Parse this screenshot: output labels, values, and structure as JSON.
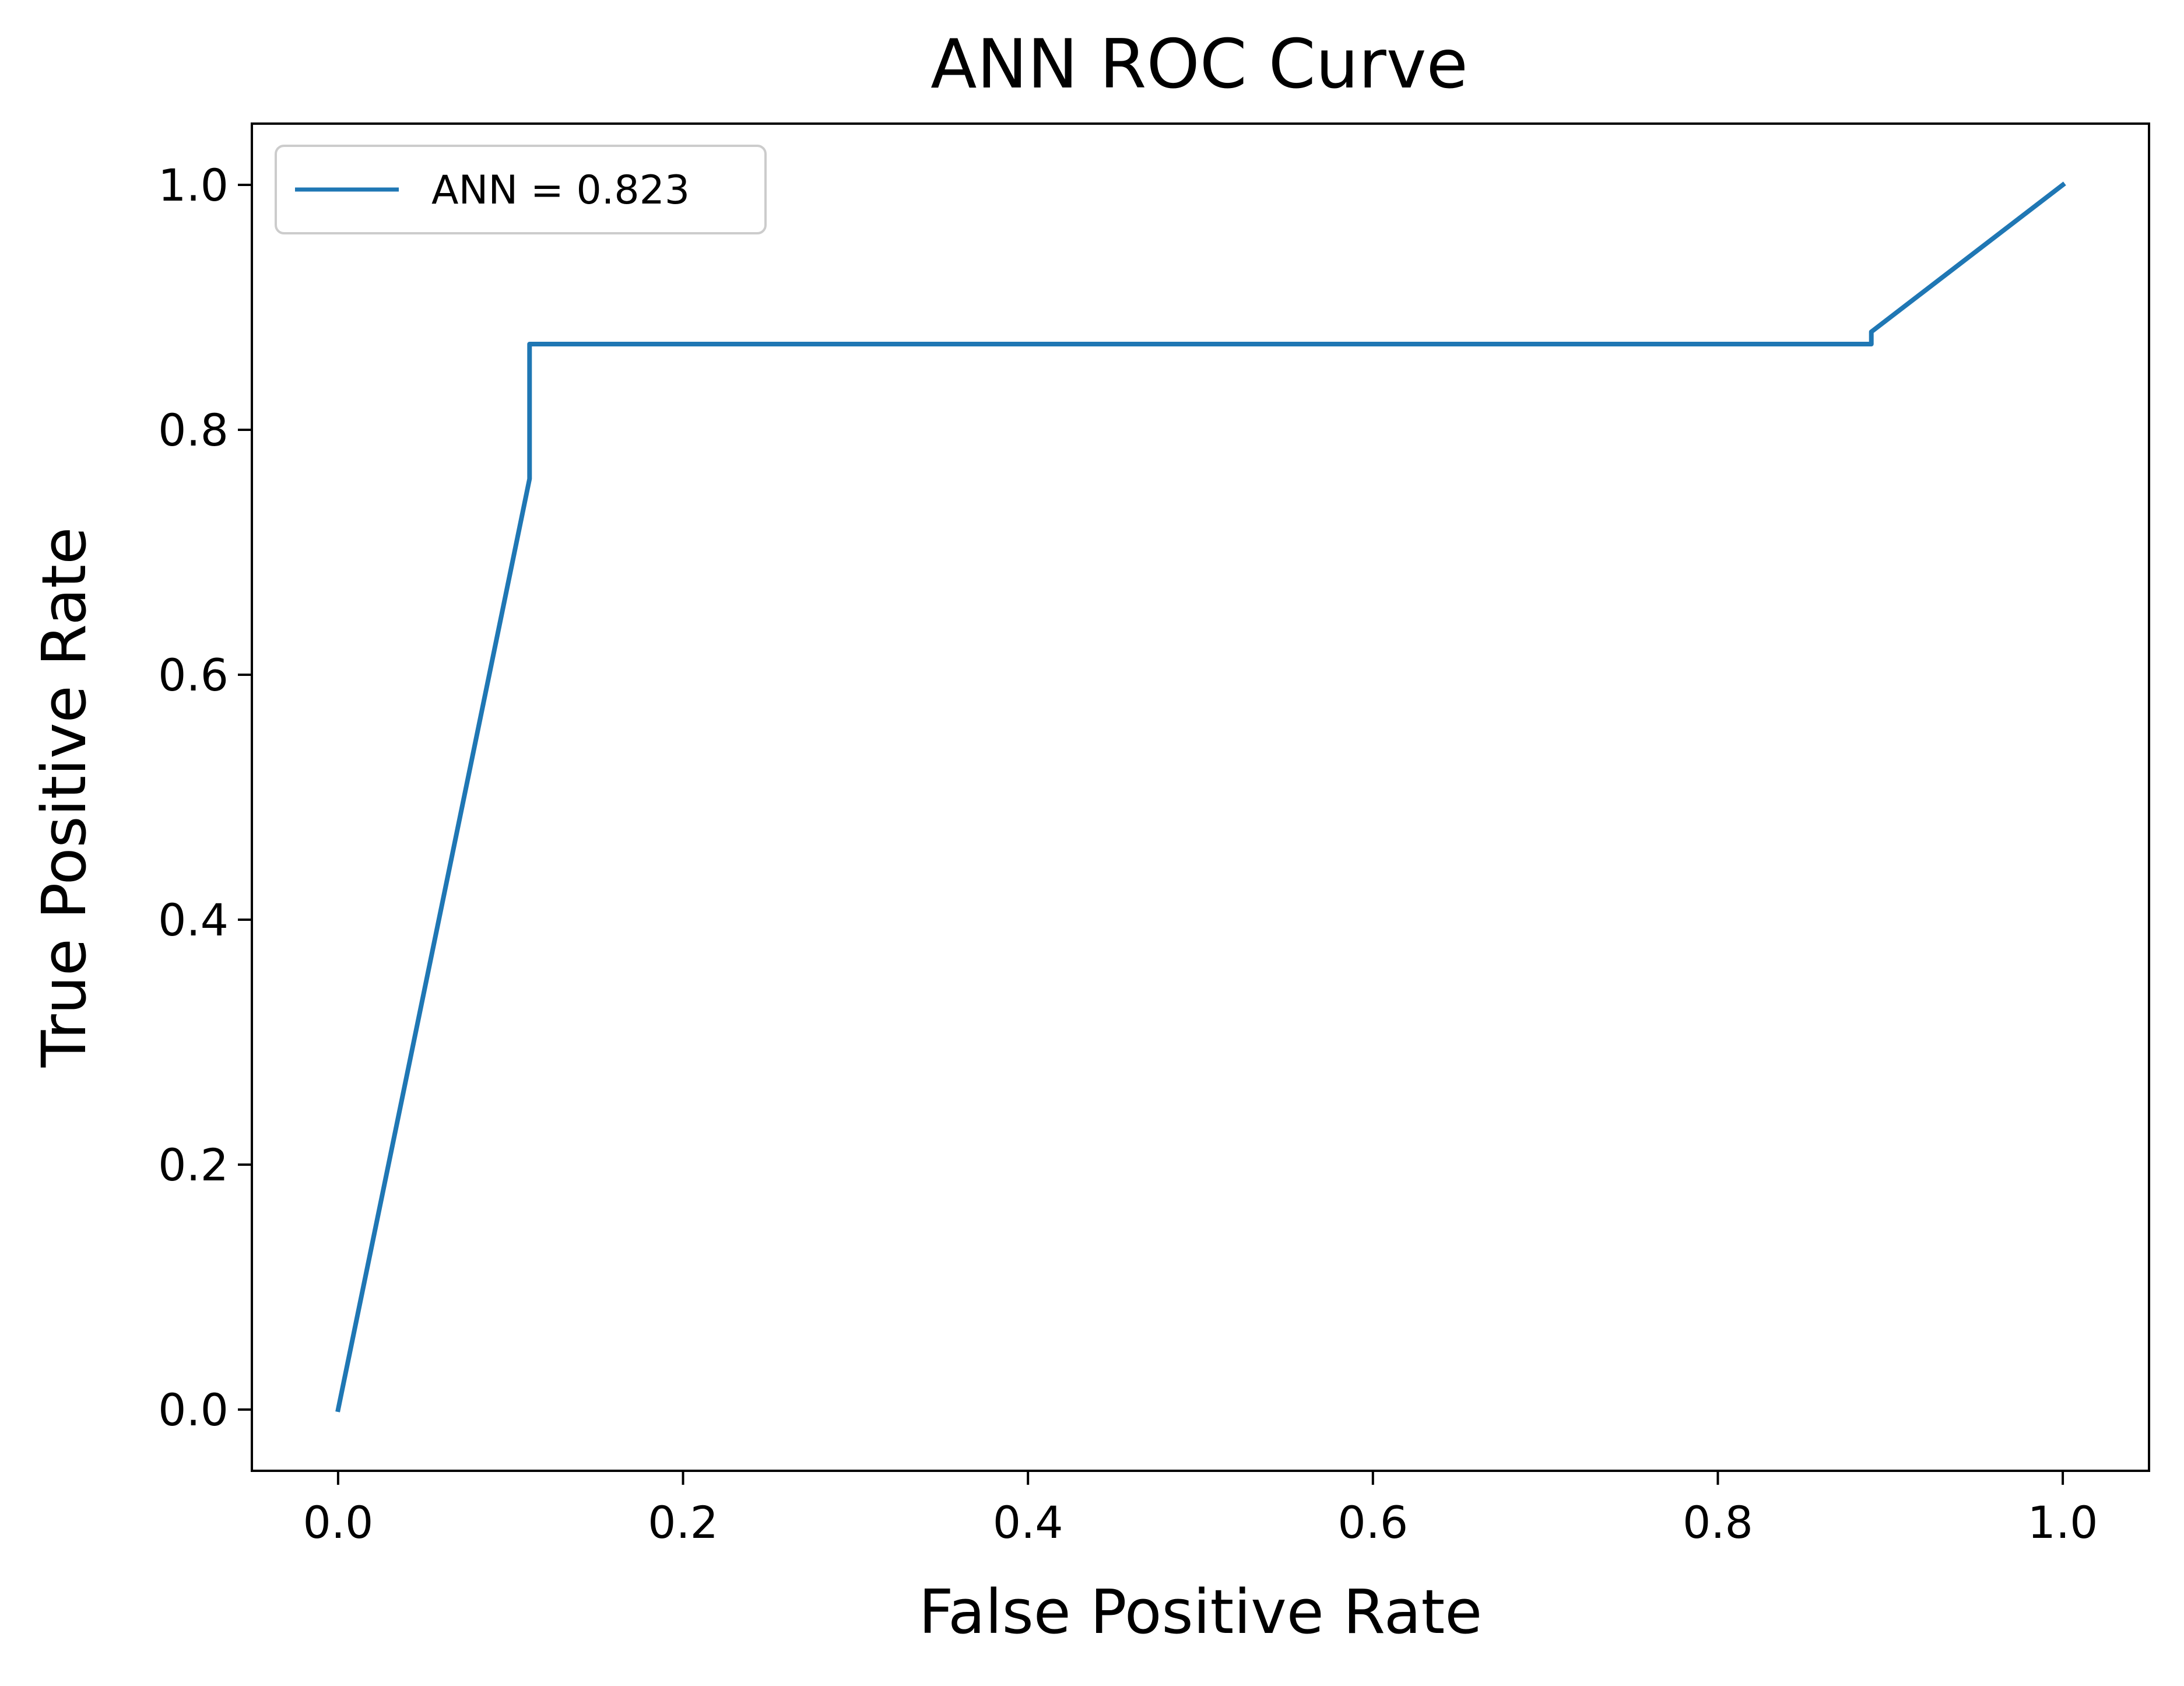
{
  "chart_data": {
    "type": "line",
    "title": "ANN ROC Curve",
    "xlabel": "False Positive Rate",
    "ylabel": "True Positive Rate",
    "xlim": [
      -0.05,
      1.05
    ],
    "ylim": [
      -0.05,
      1.05
    ],
    "xticks": [
      0.0,
      0.2,
      0.4,
      0.6,
      0.8,
      1.0
    ],
    "yticks": [
      0.0,
      0.2,
      0.4,
      0.6,
      0.8,
      1.0
    ],
    "xtick_labels": [
      "0.0",
      "0.2",
      "0.4",
      "0.6",
      "0.8",
      "1.0"
    ],
    "ytick_labels": [
      "0.0",
      "0.2",
      "0.4",
      "0.6",
      "0.8",
      "1.0"
    ],
    "grid": false,
    "legend_position": "top-left",
    "series": [
      {
        "name": "ANN = 0.823",
        "color": "#1f77b4",
        "x": [
          0.0,
          0.111,
          0.111,
          0.889,
          0.889,
          1.0
        ],
        "y": [
          0.0,
          0.76,
          0.87,
          0.87,
          0.88,
          1.0
        ]
      }
    ]
  }
}
